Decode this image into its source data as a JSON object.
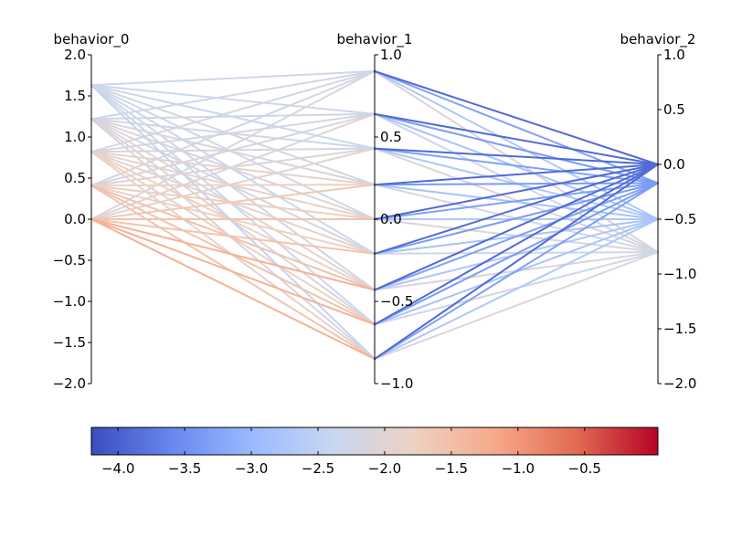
{
  "chart_data": {
    "type": "parallel-coordinates",
    "axes": [
      {
        "label": "behavior_0",
        "range": [
          -2.0,
          2.0
        ],
        "ticks": [
          "2.0",
          "1.5",
          "1.0",
          "0.5",
          "0.0",
          "−0.5",
          "−1.0",
          "−1.5",
          "−2.0"
        ],
        "tick_values": [
          2.0,
          1.5,
          1.0,
          0.5,
          0.0,
          -0.5,
          -1.0,
          -1.5,
          -2.0
        ],
        "tick_side": "left"
      },
      {
        "label": "behavior_1",
        "range": [
          -1.0,
          1.0
        ],
        "ticks": [
          "1.0",
          "0.5",
          "0.0",
          "−0.5",
          "−1.0"
        ],
        "tick_values": [
          1.0,
          0.5,
          0.0,
          -0.5,
          -1.0
        ],
        "tick_side": "right"
      },
      {
        "label": "behavior_2",
        "range": [
          -2.0,
          1.0
        ],
        "ticks": [
          "1.0",
          "0.5",
          "0.0",
          "−0.5",
          "−1.0",
          "−1.5",
          "−2.0"
        ],
        "tick_values": [
          1.0,
          0.5,
          0.0,
          -0.5,
          -1.0,
          -1.5,
          -2.0
        ],
        "tick_side": "right"
      }
    ],
    "node_values": {
      "behavior_0": [
        1.63,
        1.22,
        0.82,
        0.41,
        0.0
      ],
      "behavior_1": [
        0.9,
        0.64,
        0.43,
        0.21,
        0.0,
        -0.21,
        -0.43,
        -0.64,
        -0.85
      ],
      "behavior_2": [
        0.0,
        -0.17,
        -0.5,
        -0.8
      ]
    },
    "colorbar": {
      "colormap": "coolwarm",
      "range": [
        -4.2,
        0.05
      ],
      "ticks": [
        "−4.0",
        "−3.5",
        "−3.0",
        "−2.5",
        "−2.0",
        "−1.5",
        "−1.0",
        "−0.5"
      ],
      "tick_values": [
        -4.0,
        -3.5,
        -3.0,
        -2.5,
        -2.0,
        -1.5,
        -1.0,
        -0.5
      ],
      "colors": [
        "#3b4cc0",
        "#6788ee",
        "#9abbff",
        "#c9d7f0",
        "#edd1c2",
        "#f7a889",
        "#e26952",
        "#b40426"
      ]
    }
  }
}
